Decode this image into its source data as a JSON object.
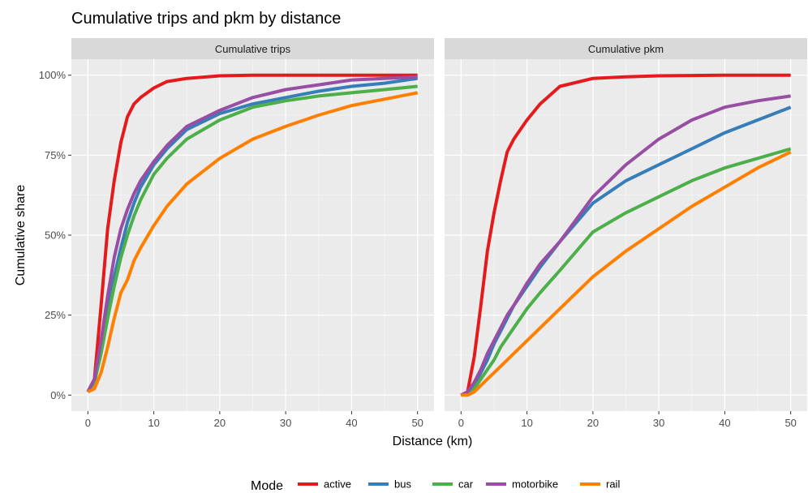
{
  "chart_data": {
    "type": "line",
    "title": "Cumulative trips and pkm by distance",
    "xlabel": "Distance (km)",
    "ylabel": "Cumulative share",
    "xlim": [
      -2.5,
      52.5
    ],
    "ylim": [
      -0.05,
      1.05
    ],
    "x_ticks": [
      0,
      10,
      20,
      30,
      40,
      50
    ],
    "y_ticks": [
      0,
      0.25,
      0.5,
      0.75,
      1.0
    ],
    "y_tick_labels": [
      "0%",
      "25%",
      "50%",
      "75%",
      "100%"
    ],
    "grid": true,
    "legend": {
      "title": "Mode",
      "placement": "bottom",
      "entries": [
        "active",
        "bus",
        "car",
        "motorbike",
        "rail"
      ]
    },
    "colors": {
      "active": "#E41A1C",
      "bus": "#377EB8",
      "car": "#4DAF4A",
      "motorbike": "#984EA3",
      "rail": "#FF7F00"
    },
    "x": [
      0,
      1,
      2,
      3,
      4,
      5,
      6,
      7,
      8,
      10,
      12,
      15,
      20,
      25,
      30,
      35,
      40,
      45,
      50
    ],
    "panels": [
      {
        "label": "Cumulative trips",
        "series": [
          {
            "name": "active",
            "values": [
              0.01,
              0.05,
              0.28,
              0.52,
              0.67,
              0.79,
              0.87,
              0.91,
              0.93,
              0.96,
              0.98,
              0.99,
              0.998,
              1.0,
              1.0,
              1.0,
              1.0,
              1.0,
              1.0
            ]
          },
          {
            "name": "bus",
            "values": [
              0.01,
              0.04,
              0.14,
              0.26,
              0.37,
              0.46,
              0.54,
              0.6,
              0.65,
              0.72,
              0.77,
              0.83,
              0.88,
              0.91,
              0.93,
              0.95,
              0.965,
              0.975,
              0.99
            ]
          },
          {
            "name": "car",
            "values": [
              0.01,
              0.04,
              0.13,
              0.24,
              0.34,
              0.43,
              0.5,
              0.56,
              0.61,
              0.69,
              0.74,
              0.8,
              0.86,
              0.9,
              0.92,
              0.935,
              0.945,
              0.955,
              0.965
            ]
          },
          {
            "name": "motorbike",
            "values": [
              0.01,
              0.05,
              0.17,
              0.31,
              0.43,
              0.52,
              0.58,
              0.63,
              0.67,
              0.73,
              0.78,
              0.84,
              0.89,
              0.93,
              0.955,
              0.97,
              0.985,
              0.99,
              0.995
            ]
          },
          {
            "name": "rail",
            "values": [
              0.01,
              0.02,
              0.07,
              0.15,
              0.24,
              0.32,
              0.36,
              0.42,
              0.46,
              0.53,
              0.59,
              0.66,
              0.74,
              0.8,
              0.84,
              0.875,
              0.905,
              0.925,
              0.945
            ]
          }
        ]
      },
      {
        "label": "Cumulative pkm",
        "series": [
          {
            "name": "active",
            "values": [
              0.0,
              0.01,
              0.12,
              0.28,
              0.45,
              0.57,
              0.67,
              0.76,
              0.8,
              0.86,
              0.91,
              0.965,
              0.99,
              0.995,
              0.998,
              0.999,
              1.0,
              1.0,
              1.0
            ]
          },
          {
            "name": "bus",
            "values": [
              0.0,
              0.005,
              0.03,
              0.07,
              0.11,
              0.16,
              0.2,
              0.24,
              0.28,
              0.34,
              0.4,
              0.48,
              0.6,
              0.67,
              0.72,
              0.77,
              0.82,
              0.86,
              0.9
            ]
          },
          {
            "name": "car",
            "values": [
              0.0,
              0.005,
              0.02,
              0.05,
              0.08,
              0.11,
              0.15,
              0.18,
              0.21,
              0.27,
              0.32,
              0.39,
              0.51,
              0.57,
              0.62,
              0.67,
              0.71,
              0.74,
              0.77
            ]
          },
          {
            "name": "motorbike",
            "values": [
              0.0,
              0.01,
              0.04,
              0.08,
              0.13,
              0.17,
              0.21,
              0.25,
              0.28,
              0.35,
              0.41,
              0.48,
              0.62,
              0.72,
              0.8,
              0.86,
              0.9,
              0.92,
              0.935
            ]
          },
          {
            "name": "rail",
            "values": [
              0.0,
              0.0,
              0.01,
              0.03,
              0.05,
              0.07,
              0.09,
              0.11,
              0.13,
              0.17,
              0.21,
              0.27,
              0.37,
              0.45,
              0.52,
              0.59,
              0.65,
              0.71,
              0.76
            ]
          }
        ]
      }
    ]
  }
}
